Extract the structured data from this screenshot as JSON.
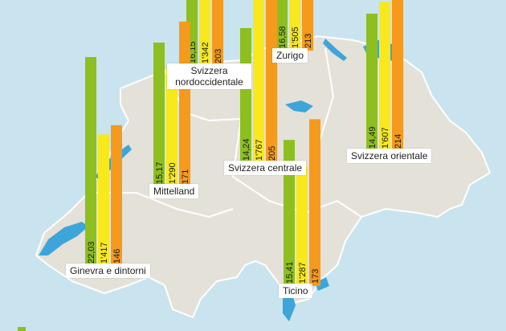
{
  "chart_data": {
    "type": "bar",
    "colors": [
      "#8cbf1f",
      "#f7e91b",
      "#f59a1c"
    ],
    "regions": [
      {
        "name": "Svizzera nordoccidentale",
        "labels": [
          "16,15",
          "1'342",
          "203"
        ],
        "values": [
          16.15,
          1342,
          203
        ]
      },
      {
        "name": "Zurigo",
        "labels": [
          "16,58",
          "1'505",
          "213"
        ],
        "values": [
          16.58,
          1505,
          213
        ]
      },
      {
        "name": "Svizzera orientale",
        "labels": [
          "14,49",
          "1'607",
          "214"
        ],
        "values": [
          14.49,
          1607,
          214
        ]
      },
      {
        "name": "Mittelland",
        "labels": [
          "15,17",
          "1'290",
          "171"
        ],
        "values": [
          15.17,
          1290,
          171
        ]
      },
      {
        "name": "Svizzera centrale",
        "labels": [
          "14,24",
          "1'767",
          "205"
        ],
        "values": [
          14.24,
          1767,
          205
        ]
      },
      {
        "name": "Ginevra e dintorni",
        "labels": [
          "22,03",
          "1'417",
          "146"
        ],
        "values": [
          22.03,
          1417,
          146
        ]
      },
      {
        "name": "Ticino",
        "labels": [
          "15,41",
          "1'287",
          "173"
        ],
        "values": [
          15.41,
          1287,
          173
        ]
      }
    ]
  },
  "map": {
    "land_color": "#e4e1d9",
    "border_color": "#ffffff",
    "water_color": "#3da5d9",
    "background": "#c9e4ee"
  }
}
